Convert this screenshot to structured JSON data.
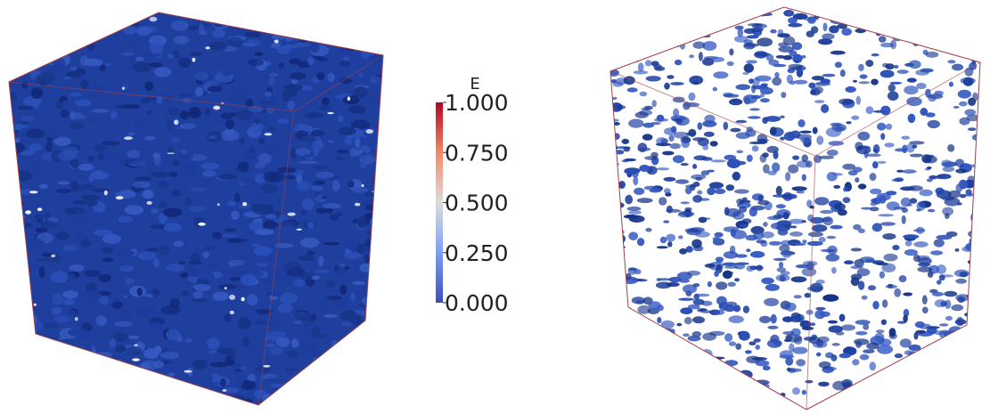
{
  "colorbar": {
    "title": "E",
    "lim": [
      0,
      1
    ],
    "ticks": [
      {
        "value": 0,
        "label": "0.000"
      },
      {
        "value": 0.25,
        "label": "0.250"
      },
      {
        "value": 0.5,
        "label": "0.500"
      },
      {
        "value": 0.75,
        "label": "0.750"
      },
      {
        "value": 1,
        "label": "1.000"
      }
    ]
  }
}
